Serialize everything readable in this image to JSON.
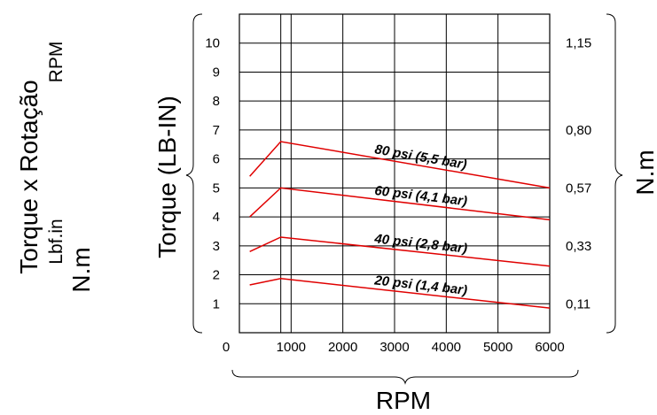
{
  "left_titles": {
    "line1": "Torque x Rotação",
    "line2_top": "RPM",
    "line2_bottom": "Lbf.in",
    "line3": "N.m"
  },
  "chart_data": {
    "type": "line",
    "title": "",
    "xlabel": "RPM",
    "ylabel": "Torque (LB-IN)",
    "ylabel_right": "N.m",
    "xlim": [
      0,
      6000
    ],
    "ylim": [
      0,
      11
    ],
    "x_ticks": [
      "0",
      "1000",
      "2000",
      "3000",
      "4000",
      "5000",
      "6000"
    ],
    "y_ticks": [
      "1",
      "2",
      "3",
      "4",
      "5",
      "6",
      "7",
      "8",
      "9",
      "10"
    ],
    "y_right_ticks": [
      {
        "value": 1,
        "label": "0,11"
      },
      {
        "value": 3,
        "label": "0,33"
      },
      {
        "value": 5,
        "label": "0,57"
      },
      {
        "value": 7,
        "label": "0,80"
      },
      {
        "value": 10,
        "label": "1,15"
      }
    ],
    "grid": true,
    "series_color": "#e00000",
    "series": [
      {
        "name": "80 psi (5,5 bar)",
        "x": [
          200,
          800,
          6000
        ],
        "y": [
          5.4,
          6.6,
          5.0
        ]
      },
      {
        "name": "60 psi (4,1 bar)",
        "x": [
          200,
          800,
          6000
        ],
        "y": [
          4.0,
          5.0,
          3.9
        ]
      },
      {
        "name": "40 psi (2,8 bar)",
        "x": [
          200,
          800,
          6000
        ],
        "y": [
          2.8,
          3.3,
          2.3
        ]
      },
      {
        "name": "20 psi (1,4 bar)",
        "x": [
          200,
          800,
          6000
        ],
        "y": [
          1.65,
          1.87,
          0.85
        ]
      }
    ]
  }
}
